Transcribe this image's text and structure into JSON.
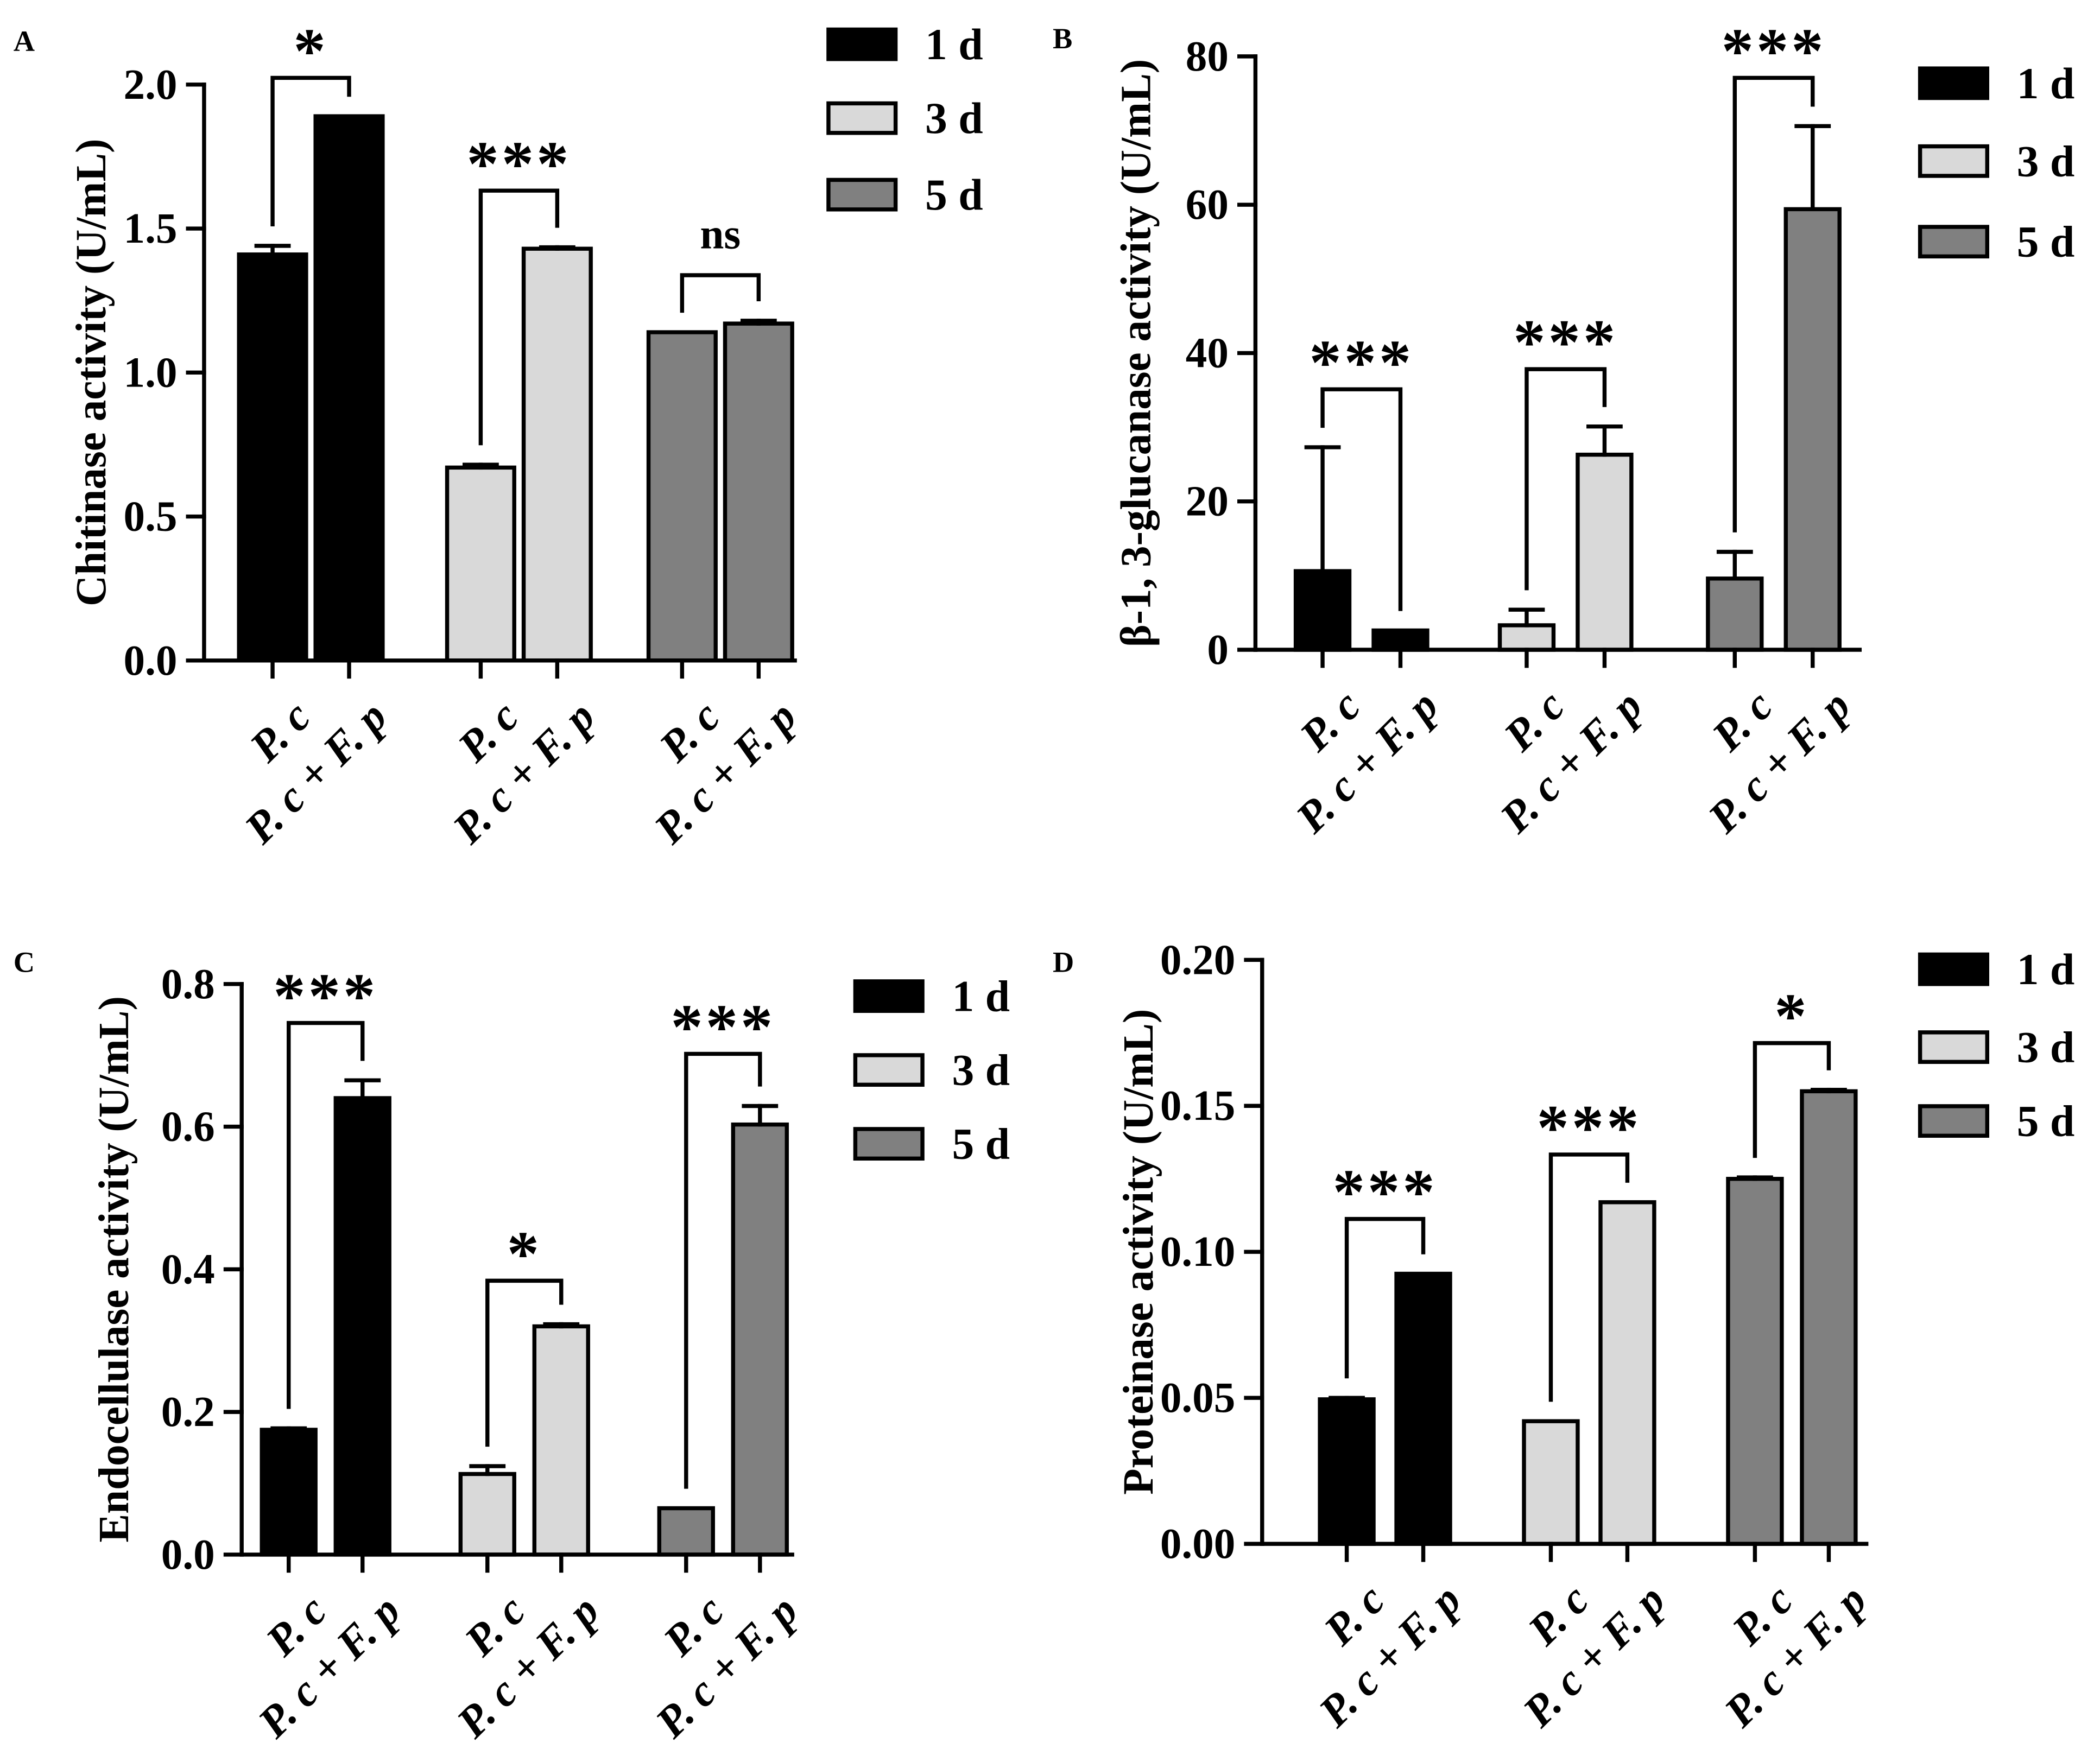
{
  "chart_data": [
    {
      "panel": "A",
      "type": "bar",
      "title": "",
      "xlabel": "",
      "ylabel": "Chitinase activity (U/mL)",
      "ylim": [
        0,
        2.0
      ],
      "yticks": [
        0,
        0.5,
        1.0,
        1.5,
        2.0
      ],
      "ytick_labels": [
        "0.0",
        "0.5",
        "1.0",
        "1.5",
        "2.0"
      ],
      "categories": [
        "P. c",
        "P. c + F. p"
      ],
      "legend_position": "top-right",
      "series": [
        {
          "name": "1 d",
          "color": "#000000",
          "values": [
            1.41,
            1.89
          ],
          "errors": [
            0.03,
            0.0
          ],
          "significance": "*"
        },
        {
          "name": "3 d",
          "color": "#d9d9d9",
          "values": [
            0.67,
            1.43
          ],
          "errors": [
            0.01,
            0.005
          ],
          "significance": "***"
        },
        {
          "name": "5 d",
          "color": "#808080",
          "values": [
            1.14,
            1.17
          ],
          "errors": [
            0.0,
            0.01
          ],
          "significance": "ns"
        }
      ]
    },
    {
      "panel": "B",
      "type": "bar",
      "title": "",
      "xlabel": "",
      "ylabel": "β-1, 3-glucanase activity (U/mL)",
      "ylim": [
        0,
        80
      ],
      "yticks": [
        0,
        20,
        40,
        60,
        80
      ],
      "ytick_labels": [
        "0",
        "20",
        "40",
        "60",
        "80"
      ],
      "categories": [
        "P. c",
        "P. c + F. p"
      ],
      "legend_position": "top-right",
      "series": [
        {
          "name": "1 d",
          "color": "#000000",
          "values": [
            10.6,
            2.6
          ],
          "errors": [
            16.7,
            0.0
          ],
          "significance": "***"
        },
        {
          "name": "3 d",
          "color": "#d9d9d9",
          "values": [
            3.3,
            26.3
          ],
          "errors": [
            2.1,
            3.8
          ],
          "significance": "***"
        },
        {
          "name": "5 d",
          "color": "#808080",
          "values": [
            9.6,
            59.4
          ],
          "errors": [
            3.6,
            11.2
          ],
          "significance": "***"
        }
      ]
    },
    {
      "panel": "C",
      "type": "bar",
      "title": "",
      "xlabel": "",
      "ylabel": "Endocellulase activity (U/mL)",
      "ylim": [
        0,
        0.8
      ],
      "yticks": [
        0,
        0.2,
        0.4,
        0.6,
        0.8
      ],
      "ytick_labels": [
        "0.0",
        "0.2",
        "0.4",
        "0.6",
        "0.8"
      ],
      "categories": [
        "P. c",
        "P. c + F. p"
      ],
      "legend_position": "top-right",
      "series": [
        {
          "name": "1 d",
          "color": "#000000",
          "values": [
            0.175,
            0.64
          ],
          "errors": [
            0.002,
            0.025
          ],
          "significance": "***"
        },
        {
          "name": "3 d",
          "color": "#d9d9d9",
          "values": [
            0.113,
            0.32
          ],
          "errors": [
            0.011,
            0.003
          ],
          "significance": "*"
        },
        {
          "name": "5 d",
          "color": "#808080",
          "values": [
            0.065,
            0.603
          ],
          "errors": [
            0.0,
            0.026
          ],
          "significance": "***"
        }
      ]
    },
    {
      "panel": "D",
      "type": "bar",
      "title": "",
      "xlabel": "",
      "ylabel": "Proteinase activity (U/mL)",
      "ylim": [
        0,
        0.2
      ],
      "yticks": [
        0,
        0.05,
        0.1,
        0.15,
        0.2
      ],
      "ytick_labels": [
        "0.00",
        "0.05",
        "0.10",
        "0.15",
        "0.20"
      ],
      "categories": [
        "P. c",
        "P. c + F. p"
      ],
      "legend_position": "top-right",
      "series": [
        {
          "name": "1 d",
          "color": "#000000",
          "values": [
            0.0495,
            0.0925
          ],
          "errors": [
            0.0005,
            0.0
          ],
          "significance": "***"
        },
        {
          "name": "3 d",
          "color": "#d9d9d9",
          "values": [
            0.042,
            0.117
          ],
          "errors": [
            0.0,
            0.0
          ],
          "significance": "***"
        },
        {
          "name": "5 d",
          "color": "#808080",
          "values": [
            0.125,
            0.155
          ],
          "errors": [
            0.0005,
            0.0005
          ],
          "significance": "*"
        }
      ]
    }
  ]
}
